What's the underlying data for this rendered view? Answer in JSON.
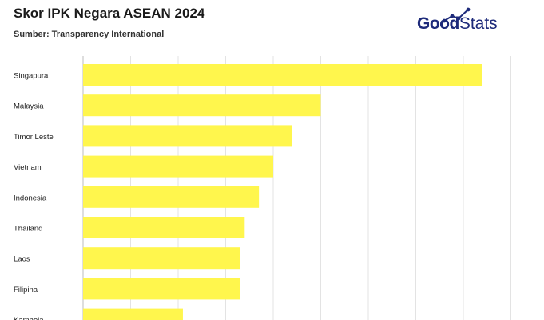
{
  "header": {
    "title": "Skor IPK Negara ASEAN 2024",
    "subtitle": "Sumber: Transparency International"
  },
  "brand": {
    "good": "Good",
    "stats": "Stats",
    "color": "#1d2a7a"
  },
  "chart_data": {
    "type": "bar",
    "orientation": "horizontal",
    "categories": [
      "Singapura",
      "Malaysia",
      "Timor Leste",
      "Vietnam",
      "Indonesia",
      "Thailand",
      "Laos",
      "Filipina",
      "Kamboja"
    ],
    "values": [
      84,
      50,
      44,
      40,
      37,
      34,
      33,
      33,
      21
    ],
    "xlim": [
      0,
      90
    ],
    "grid": true,
    "bar_color": "#fff64d",
    "title": "Skor IPK Negara ASEAN 2024",
    "xlabel": "",
    "ylabel": ""
  }
}
